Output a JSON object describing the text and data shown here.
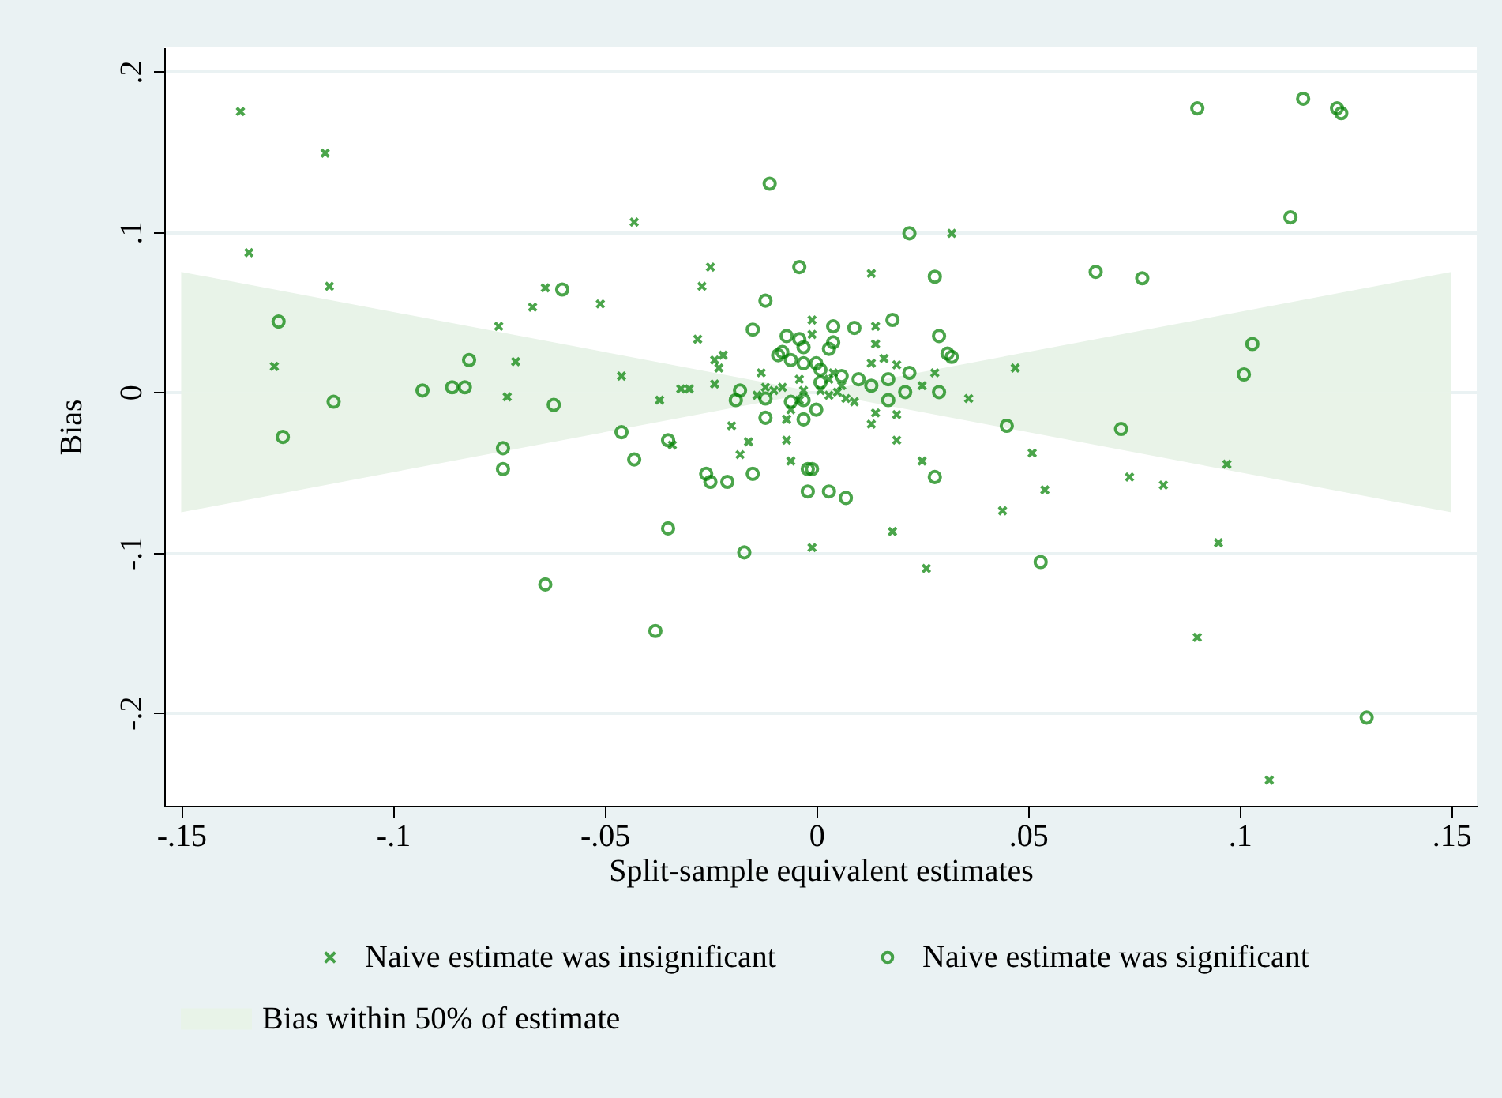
{
  "chart_data": {
    "type": "scatter",
    "xlabel": "Split-sample equivalent estimates",
    "ylabel": "Bias",
    "xlim": [
      -0.154,
      0.156
    ],
    "ylim": [
      -0.258,
      0.215
    ],
    "xticks": [
      {
        "value": -0.15,
        "label": "-.15"
      },
      {
        "value": -0.1,
        "label": "-.1"
      },
      {
        "value": -0.05,
        "label": "-.05"
      },
      0,
      {
        "value": 0.05,
        "label": ".05"
      },
      {
        "value": 0.1,
        "label": ".1"
      },
      {
        "value": 0.15,
        "label": ".15"
      }
    ],
    "yticks": [
      {
        "value": -0.2,
        "label": "-.2"
      },
      {
        "value": -0.1,
        "label": "-.1"
      },
      0,
      {
        "value": 0.1,
        "label": ".1"
      },
      {
        "value": 0.2,
        "label": ".2"
      }
    ],
    "grid": "y",
    "legend": "bottom",
    "series": [
      {
        "name": "Naive estimate was insignificant",
        "marker": "cross",
        "color": "#008000",
        "x": [
          -0.136,
          -0.116,
          -0.134,
          -0.115,
          -0.064,
          -0.067,
          -0.051,
          -0.075,
          -0.128,
          -0.071,
          -0.046,
          -0.073,
          -0.043,
          0.032,
          -0.025,
          -0.027,
          0.013,
          -0.028,
          -0.024,
          -0.022,
          -0.023,
          -0.032,
          -0.03,
          -0.024,
          -0.037,
          -0.001,
          -0.001,
          0.014,
          0.014,
          0.013,
          0.016,
          0.019,
          0.028,
          0.025,
          0.036,
          0.047,
          -0.02,
          -0.016,
          -0.018,
          -0.034,
          -0.007,
          -0.007,
          -0.006,
          0.014,
          0.013,
          0.019,
          0.019,
          0.025,
          0.018,
          0.026,
          -0.001,
          0.044,
          0.051,
          0.054,
          0.074,
          0.082,
          0.097,
          0.095,
          0.09,
          0.107,
          0.009,
          -0.013,
          -0.004,
          -0.003,
          0.001,
          0.003,
          0.005,
          0.006,
          0.007,
          -0.008,
          -0.012,
          -0.01,
          -0.014,
          -0.004,
          -0.006,
          0.003,
          0.004
        ],
        "values": [
          0.175,
          0.149,
          0.087,
          0.066,
          0.065,
          0.053,
          0.055,
          0.041,
          0.016,
          0.019,
          0.01,
          -0.003,
          0.106,
          0.099,
          0.078,
          0.066,
          0.074,
          0.033,
          0.02,
          0.023,
          0.015,
          0.002,
          0.002,
          0.005,
          -0.005,
          0.045,
          0.036,
          0.041,
          0.03,
          0.018,
          0.021,
          0.017,
          0.012,
          0.004,
          -0.004,
          0.015,
          -0.021,
          -0.031,
          -0.039,
          -0.033,
          -0.03,
          -0.017,
          -0.043,
          -0.013,
          -0.02,
          -0.014,
          -0.03,
          -0.043,
          -0.087,
          -0.11,
          -0.097,
          -0.074,
          -0.038,
          -0.061,
          -0.053,
          -0.058,
          -0.045,
          -0.094,
          -0.153,
          -0.242,
          -0.006,
          0.012,
          0.008,
          0.001,
          0.001,
          -0.002,
          0.0,
          0.004,
          -0.004,
          0.003,
          0.003,
          0.001,
          -0.002,
          -0.005,
          -0.011,
          0.008,
          0.012
        ]
      },
      {
        "name": "Naive estimate was significant",
        "marker": "circle",
        "color": "#008000",
        "x": [
          -0.127,
          -0.06,
          -0.082,
          -0.093,
          -0.086,
          -0.083,
          -0.114,
          -0.062,
          -0.126,
          -0.074,
          -0.074,
          -0.046,
          -0.064,
          -0.011,
          0.022,
          -0.004,
          0.028,
          -0.012,
          -0.015,
          0.004,
          0.009,
          0.018,
          0.029,
          -0.007,
          -0.004,
          -0.003,
          0.004,
          0.003,
          -0.009,
          -0.008,
          -0.006,
          -0.003,
          0.0,
          0.001,
          0.031,
          0.032,
          -0.018,
          -0.019,
          -0.012,
          -0.006,
          -0.003,
          0.001,
          0.006,
          0.01,
          0.013,
          0.017,
          0.017,
          0.022,
          0.021,
          0.029,
          0.045,
          -0.035,
          -0.043,
          -0.012,
          -0.003,
          0.0,
          -0.026,
          -0.025,
          -0.021,
          -0.015,
          -0.002,
          -0.001,
          -0.002,
          0.003,
          0.007,
          0.028,
          -0.035,
          -0.017,
          0.09,
          0.115,
          0.123,
          0.124,
          0.112,
          0.066,
          0.077,
          0.103,
          0.101,
          0.072,
          0.053,
          0.13,
          -0.038
        ],
        "values": [
          0.044,
          0.064,
          0.02,
          0.001,
          0.003,
          0.003,
          -0.006,
          -0.008,
          -0.028,
          -0.035,
          -0.048,
          -0.025,
          -0.12,
          0.13,
          0.099,
          0.078,
          0.072,
          0.057,
          0.039,
          0.041,
          0.04,
          0.045,
          0.035,
          0.035,
          0.033,
          0.028,
          0.031,
          0.027,
          0.023,
          0.025,
          0.02,
          0.018,
          0.018,
          0.014,
          0.024,
          0.022,
          0.001,
          -0.005,
          -0.004,
          -0.006,
          -0.005,
          0.006,
          0.01,
          0.008,
          0.004,
          0.008,
          -0.005,
          0.012,
          0.0,
          0.0,
          -0.021,
          -0.03,
          -0.042,
          -0.016,
          -0.017,
          -0.011,
          -0.051,
          -0.056,
          -0.056,
          -0.051,
          -0.048,
          -0.048,
          -0.062,
          -0.062,
          -0.066,
          -0.053,
          -0.085,
          -0.1,
          0.177,
          0.183,
          0.177,
          0.174,
          0.109,
          0.075,
          0.071,
          0.03,
          0.011,
          -0.023,
          -0.106,
          -0.203,
          -0.149
        ]
      },
      {
        "name": "Bias within 50% of estimate",
        "type": "area",
        "color": "#e8f3e8",
        "x": [
          -0.15,
          0,
          0.15
        ],
        "values": [
          0.075,
          0,
          0.075
        ]
      },
      {
        "type": "area",
        "color": "#e9f3e8",
        "x": [
          -0.15,
          0,
          0.15
        ],
        "values": [
          -0.075,
          0,
          -0.075
        ]
      }
    ]
  }
}
